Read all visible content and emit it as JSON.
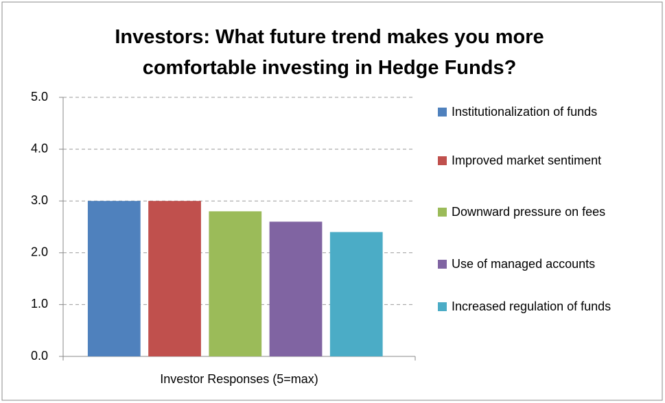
{
  "chart_data": {
    "type": "bar",
    "title": "Investors: What future trend makes you more comfortable investing in Hedge Funds?",
    "categories": [
      "Investor Responses (5=max)"
    ],
    "series": [
      {
        "name": "Institutionalization of funds",
        "color": "#4f81bd",
        "values": [
          3.0
        ]
      },
      {
        "name": "Improved market sentiment",
        "color": "#c0504d",
        "values": [
          3.0
        ]
      },
      {
        "name": "Downward pressure on fees",
        "color": "#9bbb59",
        "values": [
          2.8
        ]
      },
      {
        "name": "Use of managed accounts",
        "color": "#8064a2",
        "values": [
          2.6
        ]
      },
      {
        "name": "Increased regulation of funds",
        "color": "#4bacc6",
        "values": [
          2.4
        ]
      }
    ],
    "ylim": [
      0,
      5
    ],
    "yticks": [
      {
        "value": 0,
        "label": "0.0"
      },
      {
        "value": 1,
        "label": "1.0"
      },
      {
        "value": 2,
        "label": "2.0"
      },
      {
        "value": 3,
        "label": "3.0"
      },
      {
        "value": 4,
        "label": "4.0"
      },
      {
        "value": 5,
        "label": "5.0"
      }
    ],
    "grid": true,
    "legend": "right"
  }
}
